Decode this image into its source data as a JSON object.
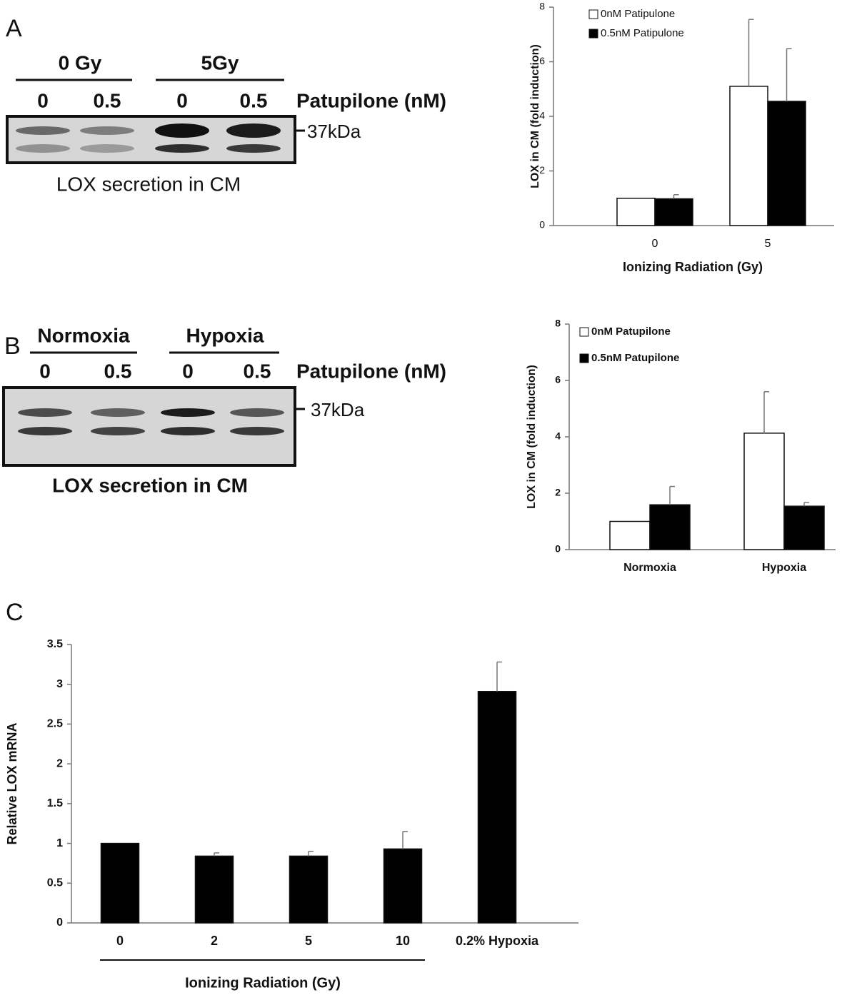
{
  "panel_labels": [
    "A",
    "B",
    "C"
  ],
  "blots": [
    {
      "groups": [
        "0 Gy",
        "5Gy"
      ],
      "doses": [
        "0",
        "0.5",
        "0",
        "0.5"
      ],
      "treatment": "Patupilone (nM)",
      "marker": "37kDa",
      "caption": "LOX secretion in CM"
    },
    {
      "groups": [
        "Normoxia",
        "Hypoxia"
      ],
      "doses": [
        "0",
        "0.5",
        "0",
        "0.5"
      ],
      "treatment": "Patupilone (nM)",
      "marker": "37kDa",
      "caption": "LOX secretion in CM"
    }
  ],
  "chart_data": [
    {
      "type": "bar",
      "ylabel": "LOX  in CM (fold induction)",
      "xlabel": "Ionizing Radiation (Gy)",
      "categories": [
        "0",
        "5"
      ],
      "series": [
        {
          "name": "0nM Patipulone",
          "color": "#ffffff",
          "values": [
            1.0,
            5.1
          ],
          "errors": [
            null,
            2.45
          ]
        },
        {
          "name": "0.5nM Patipulone",
          "color": "#000000",
          "values": [
            0.98,
            4.55
          ],
          "errors": [
            0.15,
            1.93
          ]
        }
      ],
      "ylim": [
        0,
        8
      ],
      "yticks": [
        0,
        2,
        4,
        6,
        8
      ],
      "grid": false,
      "legend": "top-left"
    },
    {
      "type": "bar",
      "ylabel": "LOX  in CM (fold induction)",
      "categories": [
        "Normoxia",
        "Hypoxia"
      ],
      "series": [
        {
          "name": "0nM Patupilone",
          "color": "#ffffff",
          "values": [
            1.0,
            4.13
          ],
          "errors": [
            null,
            1.47
          ]
        },
        {
          "name": "0.5nM Patupilone",
          "color": "#000000",
          "values": [
            1.59,
            1.54
          ],
          "errors": [
            0.65,
            0.13
          ]
        }
      ],
      "ylim": [
        0,
        8
      ],
      "yticks": [
        0,
        2,
        4,
        6,
        8
      ],
      "grid": false,
      "legend": "top-left"
    },
    {
      "type": "bar",
      "ylabel": "Relative LOX mRNA",
      "xlabel": "Ionizing Radiation (Gy)",
      "categories": [
        "0",
        "2",
        "5",
        "10",
        "0.2% Hypoxia"
      ],
      "values": [
        1.0,
        0.84,
        0.84,
        0.93,
        2.91
      ],
      "errors": [
        null,
        0.04,
        0.06,
        0.22,
        0.37
      ],
      "color": "#000000",
      "ylim": [
        0,
        3.5
      ],
      "yticks": [
        0,
        0.5,
        1,
        1.5,
        2,
        2.5,
        3,
        3.5
      ],
      "grid": false
    }
  ]
}
